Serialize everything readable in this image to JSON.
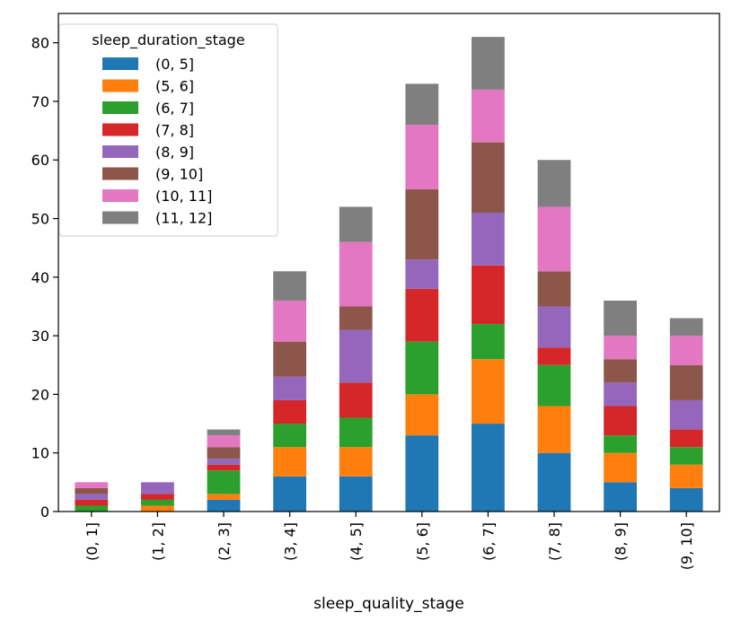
{
  "chart_data": {
    "type": "bar",
    "stacked": true,
    "title": "",
    "xlabel": "sleep_quality_stage",
    "ylabel": "",
    "ylim": [
      0,
      85
    ],
    "yticks": [
      0,
      10,
      20,
      30,
      40,
      50,
      60,
      70,
      80
    ],
    "grid": false,
    "legend_position": "top-left",
    "legend_title": "sleep_duration_stage",
    "categories": [
      "(0, 1]",
      "(1, 2]",
      "(2, 3]",
      "(3, 4]",
      "(4, 5]",
      "(5, 6]",
      "(6, 7]",
      "(7, 8]",
      "(8, 9]",
      "(9, 10]"
    ],
    "series": [
      {
        "name": "(0, 5]",
        "color": "#1f77b4",
        "values": [
          0,
          0,
          2,
          6,
          6,
          13,
          15,
          10,
          5,
          4
        ]
      },
      {
        "name": "(5, 6]",
        "color": "#ff7f0e",
        "values": [
          0,
          1,
          1,
          5,
          5,
          7,
          11,
          8,
          5,
          4
        ]
      },
      {
        "name": "(6, 7]",
        "color": "#2ca02c",
        "values": [
          1,
          1,
          4,
          4,
          5,
          9,
          6,
          7,
          3,
          3
        ]
      },
      {
        "name": "(7, 8]",
        "color": "#d62728",
        "values": [
          1,
          1,
          1,
          4,
          6,
          9,
          10,
          3,
          5,
          3
        ]
      },
      {
        "name": "(8, 9]",
        "color": "#9467bd",
        "values": [
          1,
          2,
          1,
          4,
          9,
          5,
          9,
          7,
          4,
          5
        ]
      },
      {
        "name": "(9, 10]",
        "color": "#8c564b",
        "values": [
          1,
          0,
          2,
          6,
          4,
          12,
          12,
          6,
          4,
          6
        ]
      },
      {
        "name": "(10, 11]",
        "color": "#e377c2",
        "values": [
          1,
          0,
          2,
          7,
          11,
          11,
          9,
          11,
          4,
          5
        ]
      },
      {
        "name": "(11, 12]",
        "color": "#7f7f7f",
        "values": [
          0,
          0,
          1,
          5,
          6,
          7,
          9,
          8,
          6,
          3
        ]
      }
    ]
  }
}
